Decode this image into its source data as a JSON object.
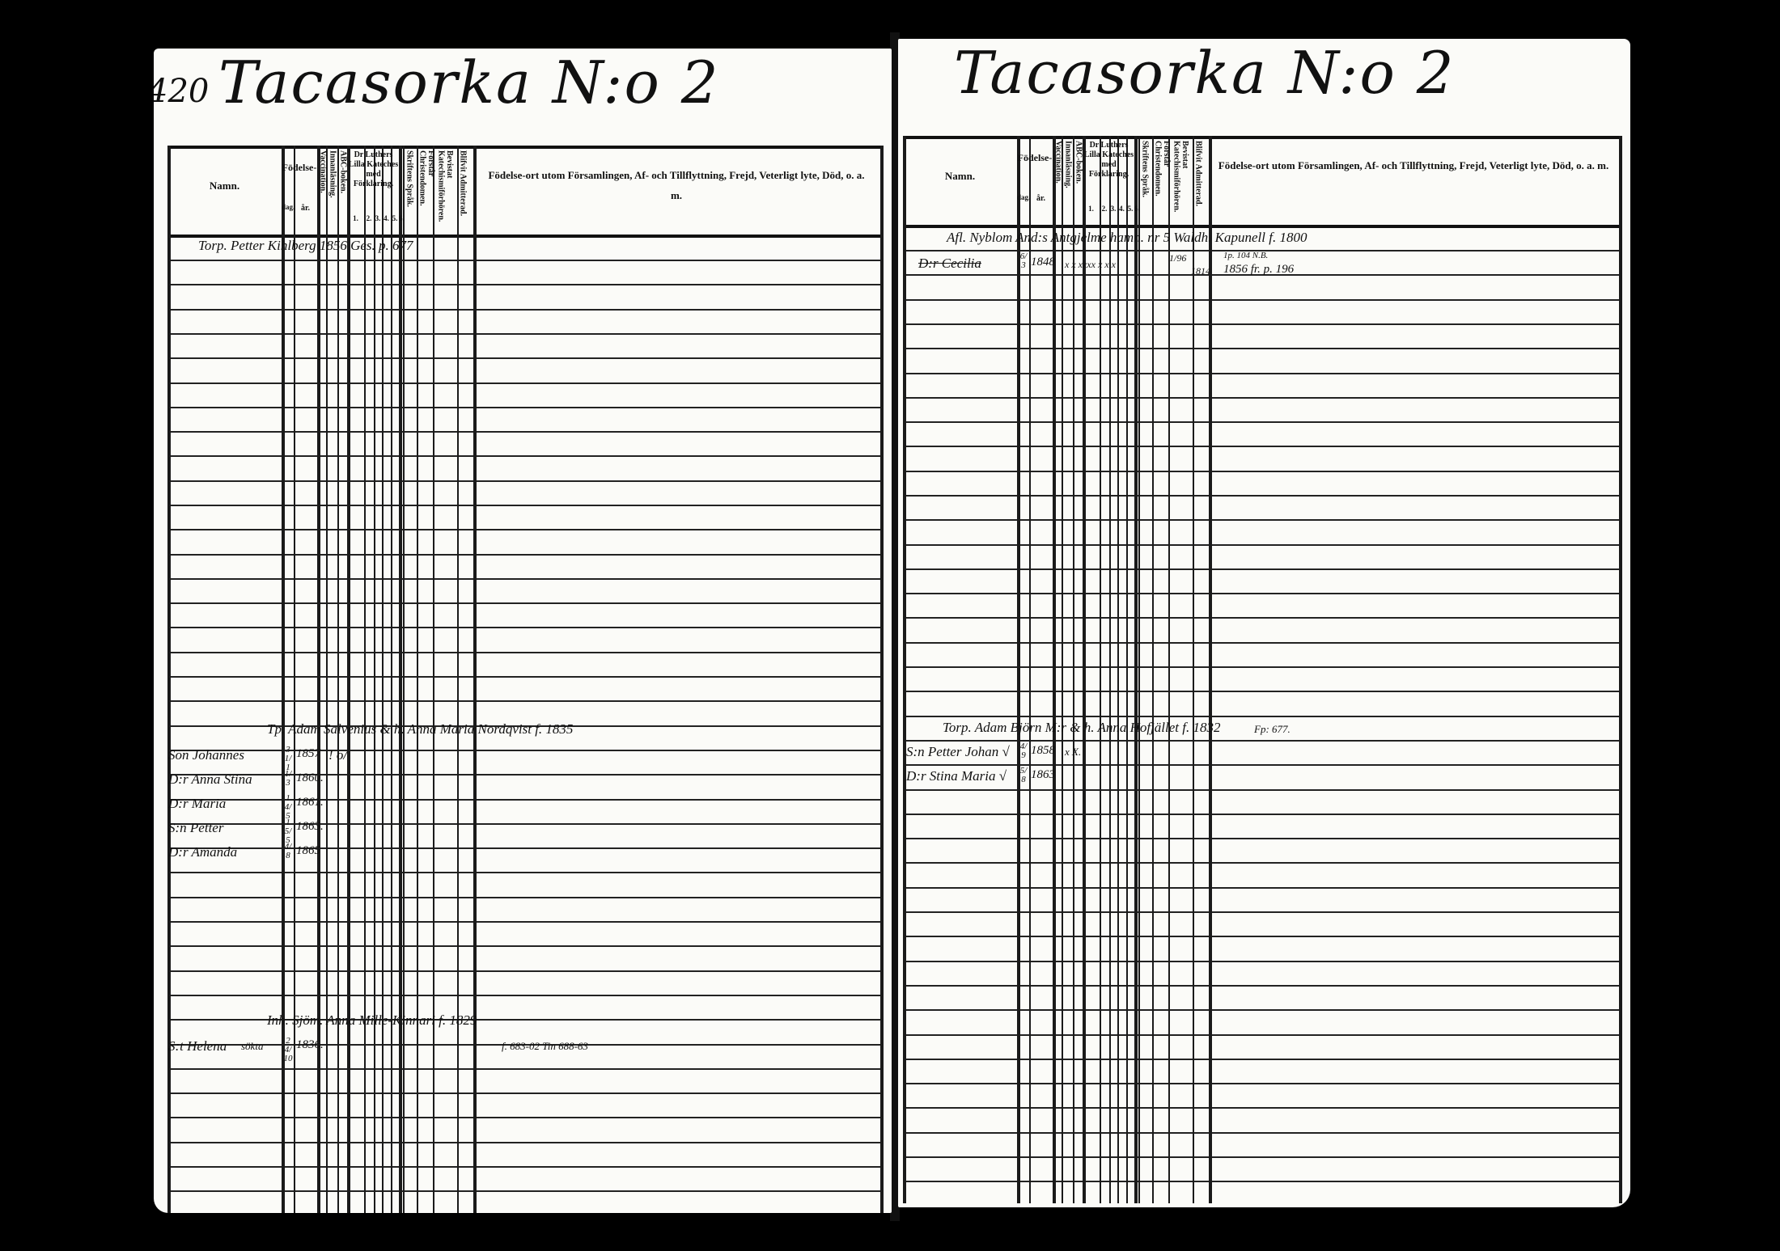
{
  "document": {
    "left_page": {
      "page_number": "420",
      "title": "Tacasorka N:o 2",
      "headers": {
        "name": "Namn.",
        "birth": "Födelse-",
        "day": "dag.",
        "year": "år.",
        "vaccination": "Vaccination.",
        "reading": "Innanläsning.",
        "abc": "ABC-boken.",
        "luther": "Dr Luthers Lilla Kateches med Förklaring.",
        "luther_parts": [
          "1.",
          "2.",
          "3.",
          "4.",
          "5.",
          "6."
        ],
        "scripture": "Skriftens Språk.",
        "christian": "Förstår Christendomen.",
        "catechism": "Bevistat Katechismiförhören.",
        "admitted": "Blifvit Admitterad.",
        "remarks": "Födelse-ort utom Församlingen, Af- och Tillflyttning, Frejd, Veterligt lyte, Död, o. a. m."
      },
      "entries": [
        {
          "name": "Torp. Petter Kihlberg 1856 Ges. p. 677"
        },
        {
          "name": "Tp. Adam Salvenius & h. Anna Maria Nordqvist f. 1835"
        },
        {
          "name": "Son Johannes",
          "day": "31/1",
          "year": "1857",
          "mark": "! o/"
        },
        {
          "name": "D:r Anna Stina",
          "day": "1/3",
          "year": "1860."
        },
        {
          "name": "D:r Maria",
          "day": "14/5",
          "year": "1861."
        },
        {
          "name": "S:n Petter",
          "day": "15/5",
          "year": "1863."
        },
        {
          "name": "D:r Amanda",
          "day": "4/8",
          "year": "1865"
        },
        {
          "name": "Inh. Sjöm. Anna Mille-Kinnari f. 1829"
        },
        {
          "name": "S:t Helena",
          "note": "sökta",
          "day": "24/10",
          "year": "1836.",
          "remark": "f. 683-02 Tin 688-63"
        }
      ]
    },
    "right_page": {
      "title": "Tacasorka N:o 2",
      "entries": [
        {
          "name": "Afl. Nyblom And:s Antgjelme hamn. nr 5 Waldh. Kapunell f. 1800"
        },
        {
          "name": "D:r Cecilia",
          "day": "6/3",
          "year": "1848",
          "marks": "x x xxxx x x x",
          "admitted": "1/96",
          "admitted_year": "1814",
          "remark1": "1p. 104 N.B.",
          "remark2": "1856 fr. p. 196"
        },
        {
          "name": "Torp. Adam Björn M:r & h. Anna Hofjället f. 1832",
          "remark": "Fp: 677."
        },
        {
          "name": "S:n Petter Johan √",
          "day": "4/9",
          "year": "1858",
          "marks": "x X."
        },
        {
          "name": "D:r Stina Maria √",
          "day": "5/8",
          "year": "1863"
        }
      ]
    }
  }
}
